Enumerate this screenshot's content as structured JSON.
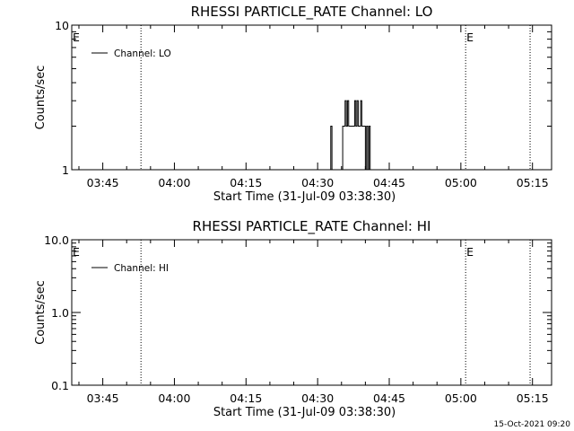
{
  "footer": {
    "timestamp": "15-Oct-2021 09:20"
  },
  "chart_data": [
    {
      "type": "line",
      "title": "RHESSI PARTICLE_RATE Channel: LO",
      "xlabel": "Start Time (31-Jul-09 03:38:30)",
      "ylabel": "Counts/sec",
      "yscale": "log",
      "ylim": [
        1,
        10
      ],
      "y_ticks": [
        1,
        10
      ],
      "y_tick_labels": [
        "1",
        "10"
      ],
      "x_range_minutes": [
        "03:38:30",
        "05:19:00"
      ],
      "x_ticks": [
        "03:45",
        "04:00",
        "04:15",
        "04:30",
        "04:45",
        "05:00",
        "05:15"
      ],
      "vlines": [
        "03:53:00",
        "05:01:00",
        "05:14:30"
      ],
      "markers": [
        {
          "label": "E",
          "at": "03:38:30"
        },
        {
          "label": "E",
          "at": "05:01:00"
        }
      ],
      "legend": "top-left",
      "series": [
        {
          "name": "Channel: LO",
          "x": [
            "04:32:30",
            "04:32:45",
            "04:33:00",
            "04:33:15",
            "04:35:00",
            "04:35:15",
            "04:35:30",
            "04:35:45",
            "04:36:00",
            "04:36:15",
            "04:36:30",
            "04:36:45",
            "04:37:00",
            "04:37:15",
            "04:37:30",
            "04:37:45",
            "04:38:00",
            "04:38:15",
            "04:38:30",
            "04:38:45",
            "04:39:00",
            "04:39:15",
            "04:39:30",
            "04:39:45",
            "04:40:00",
            "04:40:15",
            "04:40:30",
            "04:40:45",
            "04:41:00"
          ],
          "y": [
            1,
            2,
            1,
            1,
            1,
            2,
            2,
            3,
            2,
            3,
            2,
            2,
            2,
            2,
            2,
            3,
            2,
            3,
            2,
            2,
            3,
            2,
            2,
            2,
            1,
            2,
            1,
            2,
            1
          ]
        }
      ]
    },
    {
      "type": "line",
      "title": "RHESSI PARTICLE_RATE Channel: HI",
      "xlabel": "Start Time (31-Jul-09 03:38:30)",
      "ylabel": "Counts/sec",
      "yscale": "log",
      "ylim": [
        0.1,
        10
      ],
      "y_ticks": [
        0.1,
        1,
        10
      ],
      "y_tick_labels": [
        "0.1",
        "1.0",
        "10.0"
      ],
      "x_range_minutes": [
        "03:38:30",
        "05:19:00"
      ],
      "x_ticks": [
        "03:45",
        "04:00",
        "04:15",
        "04:30",
        "04:45",
        "05:00",
        "05:15"
      ],
      "vlines": [
        "03:53:00",
        "05:01:00",
        "05:14:30"
      ],
      "markers": [
        {
          "label": "E",
          "at": "03:38:30"
        },
        {
          "label": "E",
          "at": "05:01:00"
        }
      ],
      "legend": "top-left",
      "series": [
        {
          "name": "Channel: HI",
          "x": [],
          "y": []
        }
      ]
    }
  ]
}
